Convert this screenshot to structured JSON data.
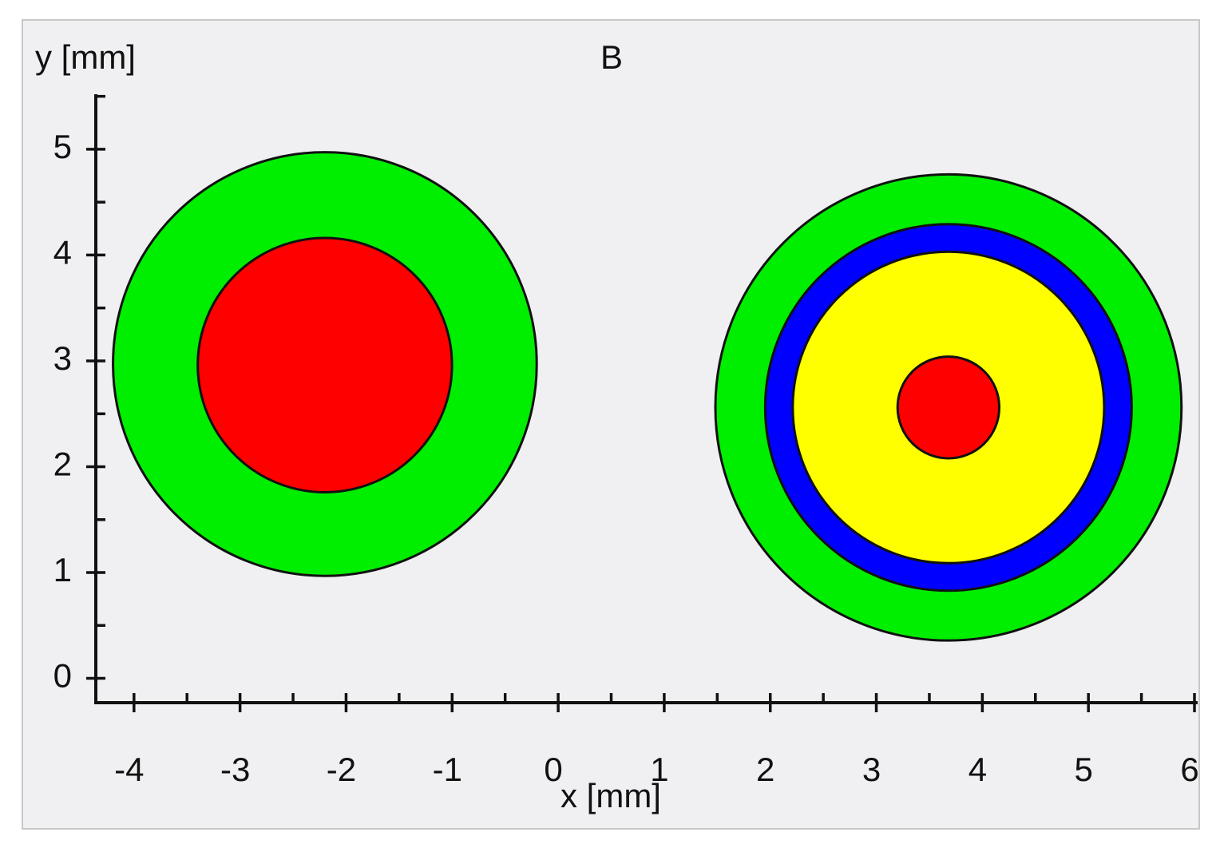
{
  "chart_data": {
    "type": "discs",
    "title": "B",
    "x_label": "x [mm]",
    "y_label": "y [mm]",
    "xlim": [
      -4.36,
      6.03
    ],
    "ylim": [
      -0.23,
      5.52
    ],
    "xticks": [
      -4,
      -3,
      -2,
      -1,
      0,
      1,
      2,
      3,
      4,
      5,
      6
    ],
    "yticks": [
      0,
      1,
      2,
      3,
      4,
      5
    ],
    "xminorticks": [
      -3.5,
      -2.5,
      -1.5,
      -0.5,
      0.5,
      1.5,
      2.5,
      3.5,
      4.5,
      5.5
    ],
    "yminorticks": [
      0.5,
      1.5,
      2.5,
      3.5,
      4.5,
      5.5
    ],
    "discs": [
      {
        "x": -2.2,
        "y": 2.97,
        "r": 2.0,
        "color": "#00ee00"
      },
      {
        "x": -2.2,
        "y": 2.96,
        "r": 1.2,
        "color": "#ff0000"
      },
      {
        "x": 3.68,
        "y": 2.56,
        "r": 2.2,
        "color": "#00ee00"
      },
      {
        "x": 3.68,
        "y": 2.56,
        "r": 1.73,
        "color": "#0000ff"
      },
      {
        "x": 3.68,
        "y": 2.56,
        "r": 1.47,
        "color": "#ffff00"
      },
      {
        "x": 3.68,
        "y": 2.56,
        "r": 0.48,
        "color": "#ff0000"
      }
    ]
  }
}
